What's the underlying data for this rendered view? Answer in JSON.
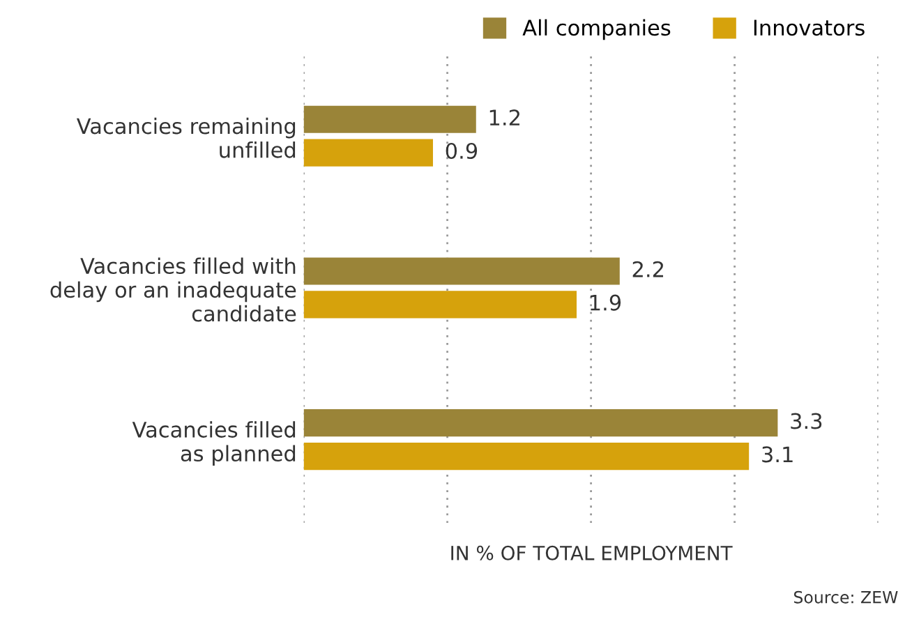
{
  "chart_data": {
    "type": "bar",
    "orientation": "horizontal",
    "categories": [
      "Vacancies remaining\nunfilled",
      "Vacancies filled with\ndelay or an inadequate\ncandidate",
      "Vacancies filled\nas planned"
    ],
    "series": [
      {
        "name": "All companies",
        "color": "#9a8438",
        "values": [
          1.2,
          2.2,
          3.3
        ]
      },
      {
        "name": "Innovators",
        "color": "#d6a20c",
        "values": [
          0.9,
          1.9,
          3.1
        ]
      }
    ],
    "xlabel": "IN % OF TOTAL EMPLOYMENT",
    "xlim": [
      0,
      4
    ],
    "xticks": [
      {
        "value": 0,
        "label": null
      },
      {
        "value": 1,
        "label": null
      },
      {
        "value": 2,
        "label": null
      },
      {
        "value": 3,
        "label": null
      },
      {
        "value": 4,
        "label": null
      }
    ],
    "grid": "x",
    "data_labels": true,
    "legend": "top right",
    "annotations": [
      "Source: ZEW"
    ]
  }
}
